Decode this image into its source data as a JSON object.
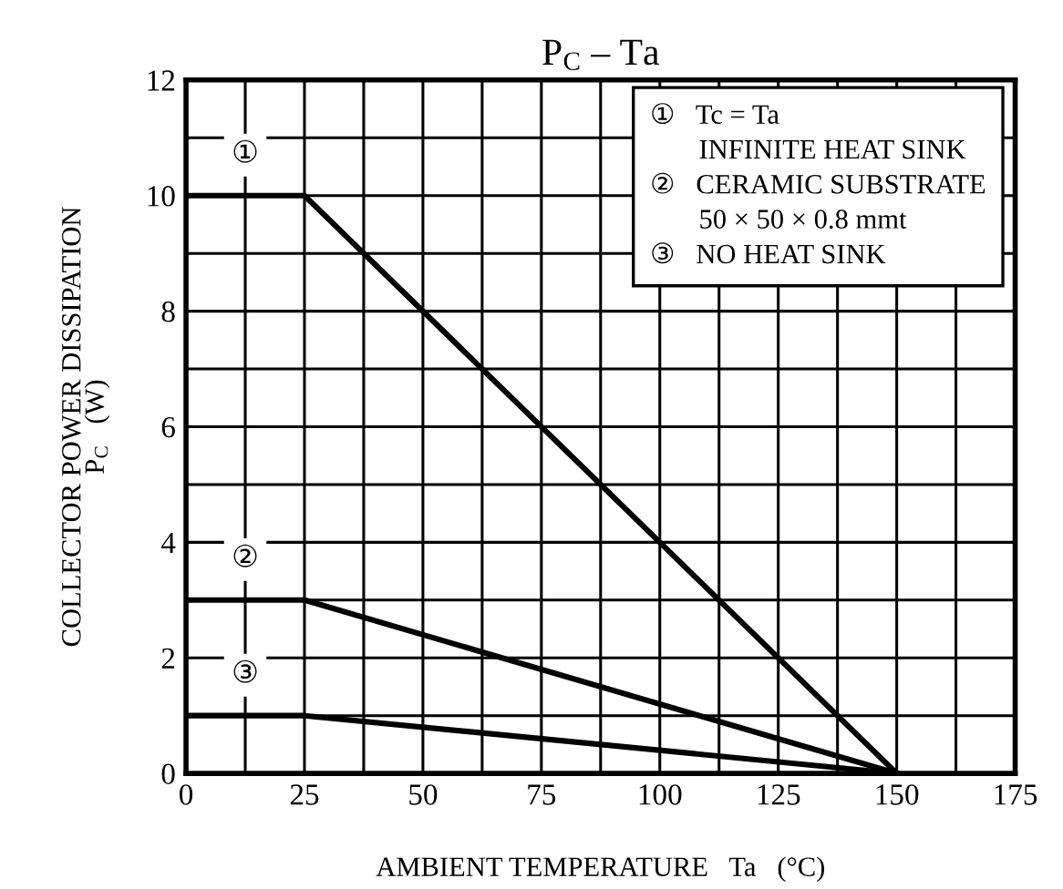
{
  "chart_data": {
    "type": "line",
    "title": "P$_{C}$ – Ta",
    "xlabel": "AMBIENT TEMPERATURE   Ta   (°C)",
    "ylabel": "COLLECTOR POWER DISSIPATION\nP$_{C}$   (W)",
    "series": [
      {
        "name": "①",
        "color": "#000000",
        "x": [
          0,
          25,
          150
        ],
        "values": [
          10,
          10,
          0
        ]
      },
      {
        "name": "②",
        "color": "#000000",
        "x": [
          0,
          25,
          150
        ],
        "values": [
          3,
          3,
          0
        ]
      },
      {
        "name": "③",
        "color": "#000000",
        "x": [
          0,
          25,
          150
        ],
        "values": [
          1,
          1,
          0
        ]
      }
    ],
    "annotations": [
      "①   Tc = Ta\n       INFINITE HEAT SINK",
      "②   CERAMIC SUBSTRATE\n       50 × 50 × 0.8 mmt",
      "③   NO HEAT SINK"
    ],
    "xlim": [
      0,
      175
    ],
    "xticks": [
      0,
      25,
      50,
      75,
      100,
      125,
      150,
      175
    ],
    "ylim": [
      0,
      12
    ],
    "yticks": [
      0,
      2,
      4,
      6,
      8,
      10,
      12
    ],
    "grid": true,
    "marker": "none",
    "line_style": "solid"
  }
}
